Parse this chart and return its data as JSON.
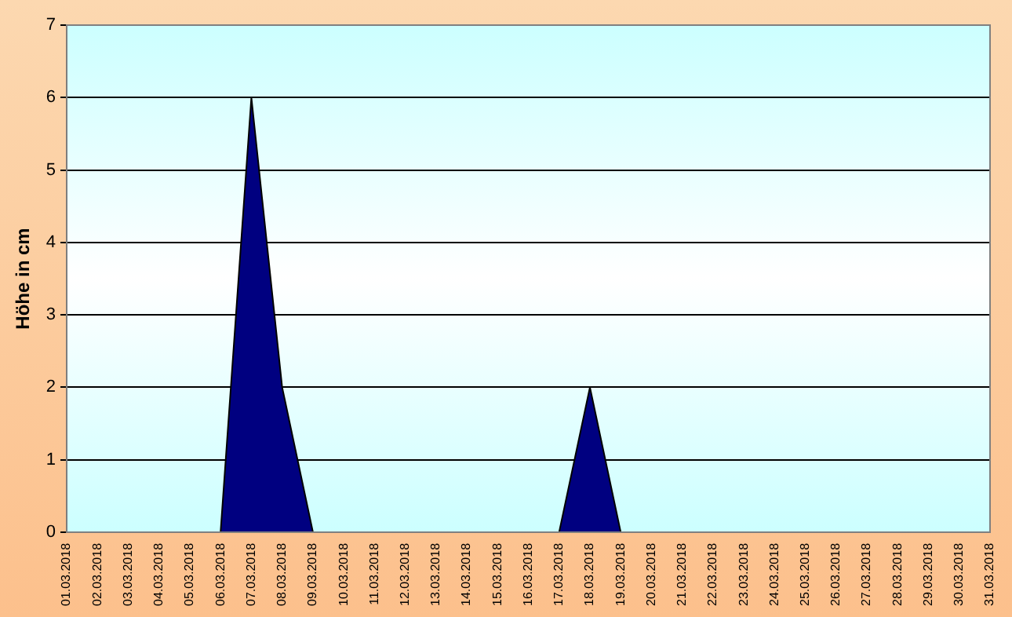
{
  "chart_data": {
    "type": "area",
    "ylabel": "Höhe in cm",
    "categories": [
      "01.03.2018",
      "02.03.2018",
      "03.03.2018",
      "04.03.2018",
      "05.03.2018",
      "06.03.2018",
      "07.03.2018",
      "08.03.2018",
      "09.03.2018",
      "10.03.2018",
      "11.03.2018",
      "12.03.2018",
      "13.03.2018",
      "14.03.2018",
      "15.03.2018",
      "16.03.2018",
      "17.03.2018",
      "18.03.2018",
      "19.03.2018",
      "20.03.2018",
      "21.03.2018",
      "22.03.2018",
      "23.03.2018",
      "24.03.2018",
      "25.03.2018",
      "26.03.2018",
      "27.03.2018",
      "28.03.2018",
      "29.03.2018",
      "30.03.2018",
      "31.03.2018"
    ],
    "series": [
      {
        "color": "#000080",
        "values": [
          0,
          0,
          0,
          0,
          0,
          0,
          6,
          2,
          0,
          0,
          0,
          0,
          0,
          0,
          0,
          0,
          0,
          2,
          0,
          0,
          0,
          0,
          0,
          0,
          0,
          0,
          0,
          0,
          0,
          0,
          0
        ]
      }
    ],
    "ylim": [
      0,
      7
    ],
    "yticks": [
      0,
      1,
      2,
      3,
      4,
      5,
      6,
      7
    ],
    "grid": "y",
    "legend": false
  }
}
